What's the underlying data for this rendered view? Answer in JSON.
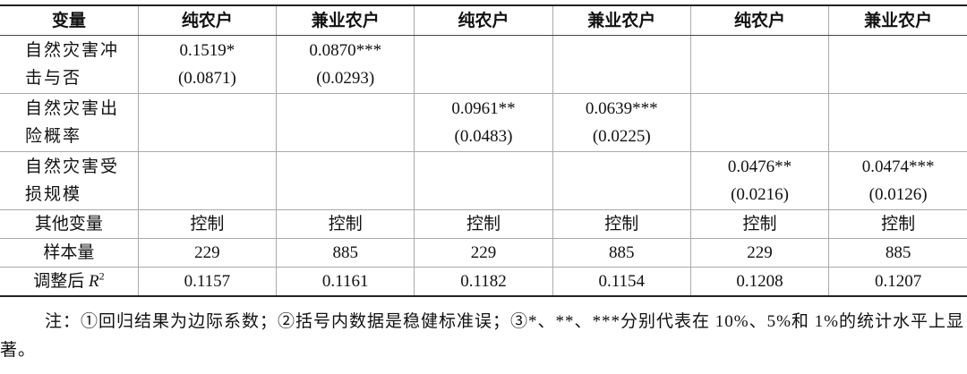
{
  "table": {
    "header": [
      "变量",
      "纯农户",
      "兼业农户",
      "纯农户",
      "兼业农户",
      "纯农户",
      "兼业农户"
    ],
    "rows": [
      {
        "label": "自然灾害冲击与否",
        "cells": [
          {
            "coef": "0.1519*",
            "se": "(0.0871)"
          },
          {
            "coef": "0.0870***",
            "se": "(0.0293)"
          },
          null,
          null,
          null,
          null
        ]
      },
      {
        "label": "自然灾害出险概率",
        "cells": [
          null,
          null,
          {
            "coef": "0.0961**",
            "se": "(0.0483)"
          },
          {
            "coef": "0.0639***",
            "se": "(0.0225)"
          },
          null,
          null
        ]
      },
      {
        "label": "自然灾害受损规模",
        "cells": [
          null,
          null,
          null,
          null,
          {
            "coef": "0.0476**",
            "se": "(0.0216)"
          },
          {
            "coef": "0.0474***",
            "se": "(0.0126)"
          }
        ]
      },
      {
        "label": "其他变量",
        "cells": [
          "控制",
          "控制",
          "控制",
          "控制",
          "控制",
          "控制"
        ]
      },
      {
        "label": "样本量",
        "cells": [
          "229",
          "885",
          "229",
          "885",
          "229",
          "885"
        ]
      },
      {
        "label": {
          "text": "调整后",
          "var": "R",
          "sup": "2"
        },
        "cells": [
          "0.1157",
          "0.1161",
          "0.1182",
          "0.1154",
          "0.1208",
          "0.1207"
        ]
      }
    ]
  },
  "note": "注：①回归结果为边际系数；②括号内数据是稳健标准误；③*、**、***分别代表在 10%、5%和 1%的统计水平上显著。"
}
